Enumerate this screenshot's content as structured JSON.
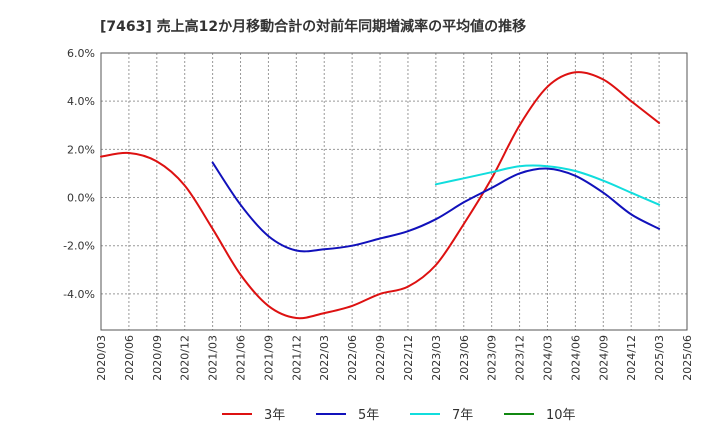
{
  "chart_data": {
    "type": "line",
    "title": "[7463]  売上高12か月移動合計の対前年同期増減率の平均値の推移",
    "xlabel": "",
    "ylabel": "",
    "ylim": [
      -5.5,
      6.0
    ],
    "y_ticks": [
      "6.0%",
      "4.0%",
      "2.0%",
      "0.0%",
      "-2.0%",
      "-4.0%"
    ],
    "y_tick_values": [
      6,
      4,
      2,
      0,
      -2,
      -4
    ],
    "categories": [
      "2020/03",
      "2020/06",
      "2020/09",
      "2020/12",
      "2021/03",
      "2021/06",
      "2021/09",
      "2021/12",
      "2022/03",
      "2022/06",
      "2022/09",
      "2022/12",
      "2023/03",
      "2023/06",
      "2023/09",
      "2023/12",
      "2024/03",
      "2024/06",
      "2024/09",
      "2024/12",
      "2025/03",
      "2025/06"
    ],
    "grid": true,
    "legend_position": "bottom",
    "series": [
      {
        "name": "3年",
        "color": "#dd1111",
        "values": [
          1.7,
          1.85,
          1.5,
          0.5,
          -1.3,
          -3.2,
          -4.5,
          -5.0,
          -4.8,
          -4.5,
          -4.0,
          -3.7,
          -2.8,
          -1.1,
          0.8,
          3.0,
          4.6,
          5.2,
          4.9,
          4.0,
          3.1,
          null
        ]
      },
      {
        "name": "5年",
        "color": "#1111bb",
        "values": [
          null,
          null,
          null,
          null,
          1.45,
          -0.3,
          -1.6,
          -2.2,
          -2.15,
          -2.0,
          -1.7,
          -1.4,
          -0.9,
          -0.2,
          0.4,
          1.0,
          1.2,
          0.9,
          0.2,
          -0.7,
          -1.3,
          null
        ]
      },
      {
        "name": "7年",
        "color": "#11dddd",
        "values": [
          null,
          null,
          null,
          null,
          null,
          null,
          null,
          null,
          null,
          null,
          null,
          null,
          0.55,
          0.8,
          1.05,
          1.3,
          1.3,
          1.1,
          0.7,
          0.2,
          -0.3,
          null
        ]
      },
      {
        "name": "10年",
        "color": "#118811",
        "values": [
          null,
          null,
          null,
          null,
          null,
          null,
          null,
          null,
          null,
          null,
          null,
          null,
          null,
          null,
          null,
          null,
          null,
          null,
          null,
          null,
          null,
          null
        ]
      }
    ]
  }
}
